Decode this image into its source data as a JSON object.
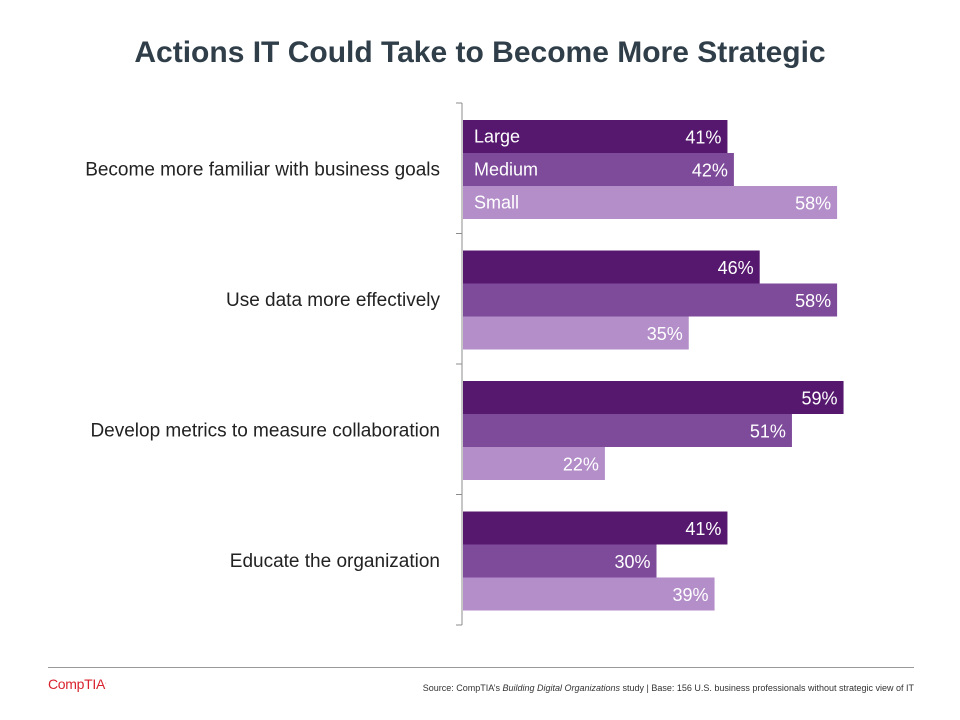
{
  "chart_data": {
    "type": "bar",
    "orientation": "horizontal",
    "title": "Actions IT Could Take to Become More Strategic",
    "categories": [
      "Become more familiar with business goals",
      "Use data more effectively",
      "Develop metrics to measure collaboration",
      "Educate the organization"
    ],
    "series": [
      {
        "name": "Large",
        "values": [
          41,
          46,
          59,
          41
        ]
      },
      {
        "name": "Medium",
        "values": [
          42,
          58,
          51,
          30
        ]
      },
      {
        "name": "Small",
        "values": [
          58,
          35,
          22,
          39
        ]
      }
    ],
    "value_suffix": "%",
    "xlim": [
      0,
      60
    ],
    "xlabel": "",
    "ylabel": "",
    "legend": "inside-first-group",
    "colors": [
      "#55186e",
      "#7e4a9a",
      "#b38ec9"
    ]
  },
  "footer": {
    "logo": "CompTIA",
    "logo_mark": ".",
    "source_prefix": "Source: CompTIA’s ",
    "source_title": "Building Digital Organizations",
    "source_suffix": " study | Base: 156 U.S. business professionals without strategic view of IT"
  }
}
